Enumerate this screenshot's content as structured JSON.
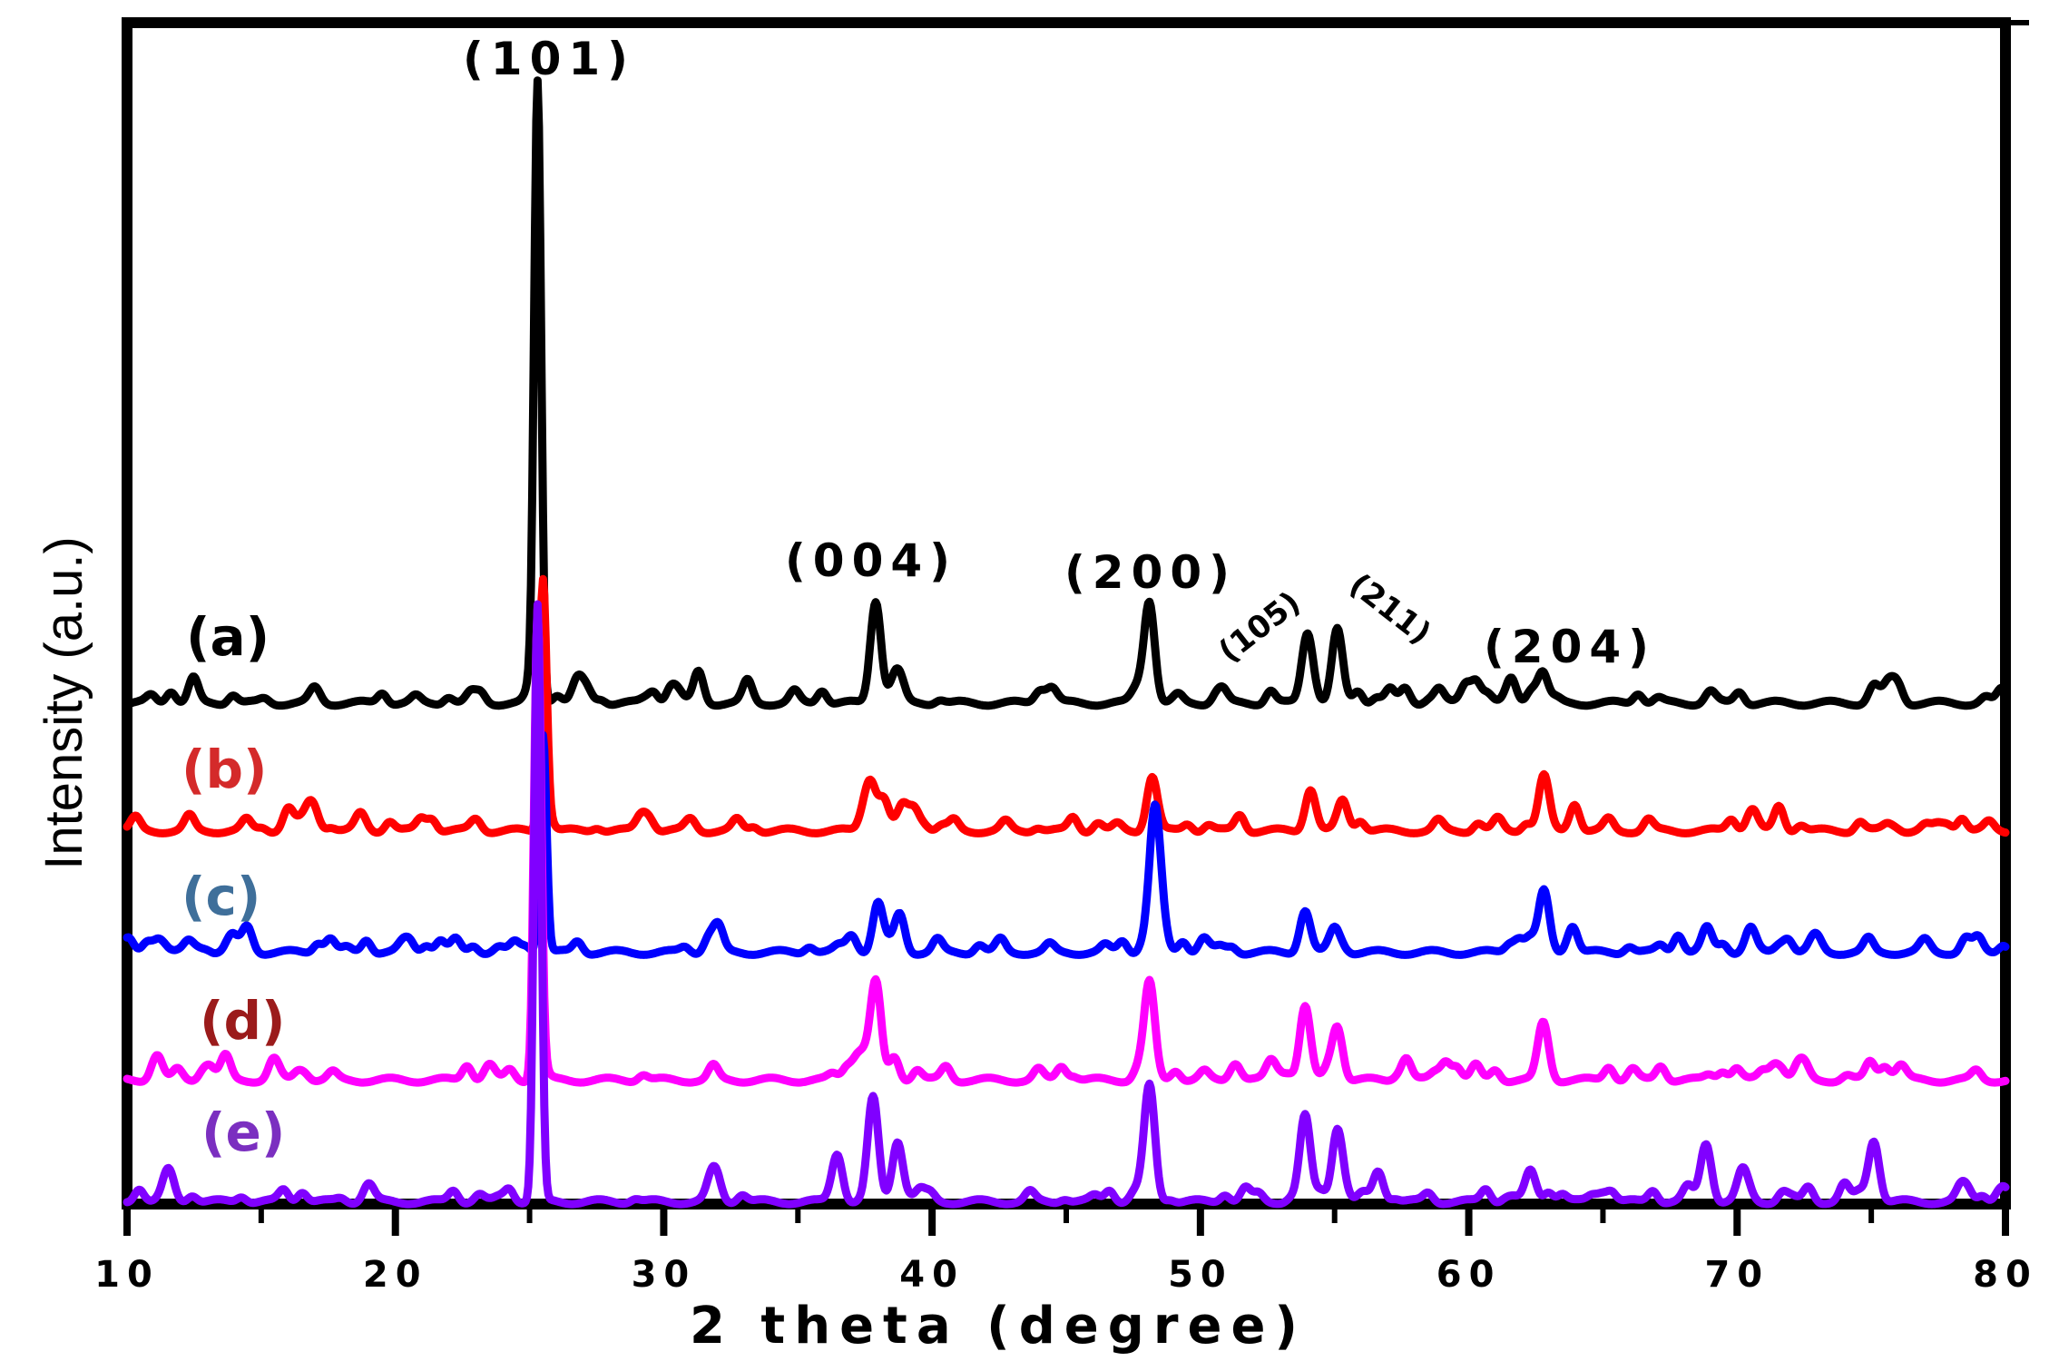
{
  "chart_data": {
    "type": "line",
    "title": "",
    "xlabel": "2 theta (degree)",
    "ylabel": "Intensity (a.u.)",
    "xlim": [
      10,
      80
    ],
    "x_ticks": [
      10,
      20,
      30,
      40,
      50,
      60,
      70,
      80
    ],
    "x_tick_labels": [
      "10",
      "20",
      "30",
      "40",
      "50",
      "60",
      "70",
      "80"
    ],
    "grid": false,
    "y_units": "a.u.",
    "series": [
      {
        "name": "(a)",
        "color": "#000000",
        "offset": 0.0,
        "peaks": [
          [
            25.3,
            1.0
          ],
          [
            37.9,
            0.17
          ],
          [
            38.6,
            0.04
          ],
          [
            48.1,
            0.16
          ],
          [
            54.0,
            0.11
          ],
          [
            55.1,
            0.12
          ],
          [
            62.7,
            0.03
          ],
          [
            75.1,
            0.03
          ],
          [
            17.0,
            0.025
          ],
          [
            69.0,
            0.02
          ],
          [
            30.5,
            0.02
          ],
          [
            44.5,
            0.02
          ]
        ]
      },
      {
        "name": "(b)",
        "color": "#ff0000",
        "offset": -0.21,
        "peaks": [
          [
            25.5,
            0.41
          ],
          [
            37.5,
            0.04
          ],
          [
            38.2,
            0.05
          ],
          [
            38.9,
            0.04
          ],
          [
            48.2,
            0.09
          ],
          [
            54.1,
            0.07
          ],
          [
            55.3,
            0.05
          ],
          [
            62.8,
            0.09
          ],
          [
            70.5,
            0.025
          ],
          [
            16.0,
            0.02
          ],
          [
            23.0,
            0.02
          ],
          [
            31.0,
            0.02
          ]
        ]
      },
      {
        "name": "(c)",
        "color": "#0000ff",
        "offset": -0.41,
        "peaks": [
          [
            25.5,
            0.36
          ],
          [
            37.0,
            0.03
          ],
          [
            38.0,
            0.06
          ],
          [
            38.8,
            0.04
          ],
          [
            48.3,
            0.23
          ],
          [
            53.9,
            0.07
          ],
          [
            55.0,
            0.04
          ],
          [
            62.8,
            0.1
          ],
          [
            70.5,
            0.04
          ],
          [
            68.9,
            0.025
          ],
          [
            14.5,
            0.03
          ],
          [
            32.0,
            0.025
          ],
          [
            77.0,
            0.02
          ]
        ]
      },
      {
        "name": "(d)",
        "color": "#ff00ff",
        "offset": -0.62,
        "peaks": [
          [
            25.3,
            0.77
          ],
          [
            37.9,
            0.16
          ],
          [
            48.1,
            0.16
          ],
          [
            53.9,
            0.12
          ],
          [
            55.1,
            0.09
          ],
          [
            62.8,
            0.08
          ],
          [
            51.3,
            0.03
          ],
          [
            75.5,
            0.025
          ],
          [
            76.1,
            0.025
          ],
          [
            15.5,
            0.025
          ],
          [
            23.5,
            0.025
          ]
        ]
      },
      {
        "name": "(e)",
        "color": "#8000ff",
        "offset": -0.82,
        "peaks": [
          [
            25.3,
            0.98
          ],
          [
            37.8,
            0.17
          ],
          [
            38.7,
            0.08
          ],
          [
            36.4,
            0.04
          ],
          [
            48.1,
            0.17
          ],
          [
            53.9,
            0.14
          ],
          [
            55.1,
            0.12
          ],
          [
            56.6,
            0.03
          ],
          [
            62.3,
            0.05
          ],
          [
            68.8,
            0.07
          ],
          [
            70.2,
            0.05
          ],
          [
            75.1,
            0.1
          ],
          [
            31.8,
            0.04
          ],
          [
            11.5,
            0.04
          ],
          [
            19.0,
            0.03
          ]
        ]
      }
    ],
    "series_label_colors": [
      "#000000",
      "#d42a2a",
      "#3f6f9a",
      "#9b1b1b",
      "#7b2fc0"
    ],
    "annotations": [
      {
        "text": "(101)",
        "x": 25.3
      },
      {
        "text": "(004)",
        "x": 37.9
      },
      {
        "text": "(200)",
        "x": 48.1
      },
      {
        "text": "(105)",
        "x": 54.0
      },
      {
        "text": "(211)",
        "x": 55.2
      },
      {
        "text": "(204)",
        "x": 62.8
      }
    ]
  }
}
